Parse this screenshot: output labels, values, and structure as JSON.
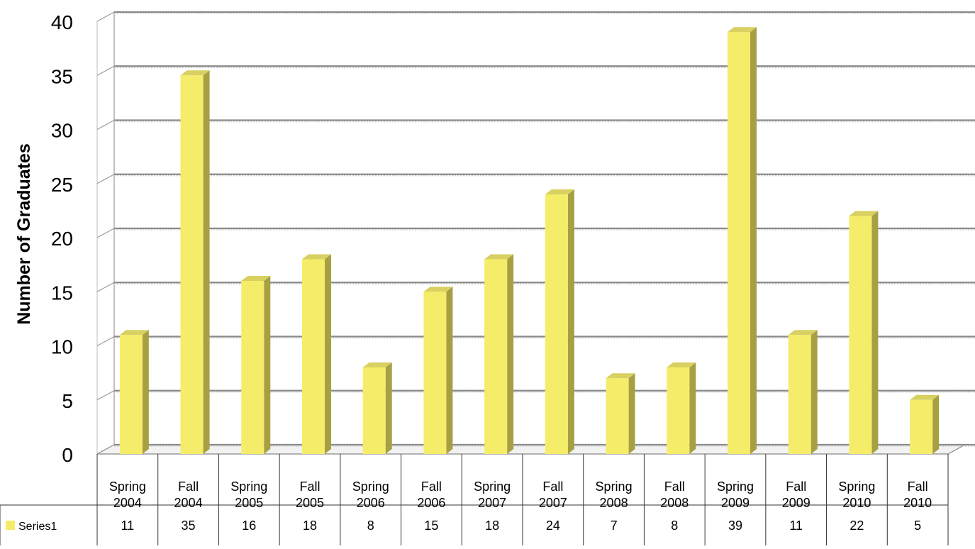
{
  "chart_data": {
    "type": "bar",
    "style": "3d-column",
    "ylabel": "Number of Graduates",
    "xlabel": "",
    "ylim": [
      0,
      40
    ],
    "yticks": [
      0,
      5,
      10,
      15,
      20,
      25,
      30,
      35,
      40
    ],
    "grid": true,
    "categories": [
      [
        "Spring",
        "2004"
      ],
      [
        "Fall",
        "2004"
      ],
      [
        "Spring",
        "2005"
      ],
      [
        "Fall",
        "2005"
      ],
      [
        "Spring",
        "2006"
      ],
      [
        "Fall",
        "2006"
      ],
      [
        "Spring",
        "2007"
      ],
      [
        "Fall",
        "2007"
      ],
      [
        "Spring",
        "2008"
      ],
      [
        "Fall",
        "2008"
      ],
      [
        "Spring",
        "2009"
      ],
      [
        "Fall",
        "2009"
      ],
      [
        "Spring",
        "2010"
      ],
      [
        "Fall",
        "2010"
      ]
    ],
    "series": [
      {
        "name": "Series1",
        "color": "#f5ec6a",
        "values": [
          11,
          35,
          16,
          18,
          8,
          15,
          18,
          24,
          7,
          8,
          39,
          11,
          22,
          5
        ]
      }
    ],
    "data_table": true
  }
}
